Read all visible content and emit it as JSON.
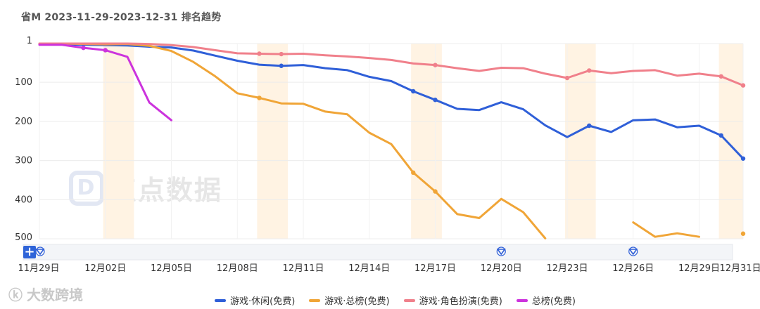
{
  "page": {
    "title": "省M 2023-11-29-2023-12-31 排名趋势",
    "watermark_text": "大数跨境",
    "logo_text": "点点数据",
    "zoom_button_label": "+"
  },
  "colors": {
    "casual": "#2f5fd8",
    "top": "#f0a537",
    "rpg": "#f0808b",
    "overall": "#cc33dd",
    "highlight": "#fff3e3"
  },
  "chart_data": {
    "type": "line",
    "title": "省M 2023-11-29-2023-12-31 排名趋势",
    "x_tick_labels": [
      "11月29日",
      "12月02日",
      "12月05日",
      "12月08日",
      "12月11日",
      "12月14日",
      "12月17日",
      "12月20日",
      "12月23日",
      "12月26日",
      "12月29日",
      "12月31日"
    ],
    "x_tick_positions_day_index": [
      0,
      3,
      6,
      9,
      12,
      15,
      18,
      21,
      24,
      27,
      30,
      32
    ],
    "y_tick_labels": [
      "1",
      "100",
      "200",
      "300",
      "400",
      "500"
    ],
    "y_tick_values": [
      1,
      100,
      200,
      300,
      400,
      500
    ],
    "y_range": [
      1,
      500
    ],
    "y_inverted": true,
    "shaded_day_index_ranges": [
      [
        2.9,
        4.3
      ],
      [
        9.9,
        11.3
      ],
      [
        16.9,
        18.3
      ],
      [
        23.9,
        25.3
      ],
      [
        30.9,
        32
      ]
    ],
    "series": [
      {
        "name": "游戏·休闲(免费)",
        "color_key": "casual",
        "points": [
          [
            0,
            3
          ],
          [
            1,
            3
          ],
          [
            2,
            4
          ],
          [
            3,
            5
          ],
          [
            4,
            6
          ],
          [
            5,
            9
          ],
          [
            6,
            11
          ],
          [
            7,
            19
          ],
          [
            8,
            32
          ],
          [
            9,
            45
          ],
          [
            10,
            55
          ],
          [
            11,
            58
          ],
          [
            12,
            56
          ],
          [
            13,
            64
          ],
          [
            14,
            69
          ],
          [
            15,
            86
          ],
          [
            16,
            97
          ],
          [
            17,
            123
          ],
          [
            18,
            145
          ],
          [
            19,
            168
          ],
          [
            20,
            171
          ],
          [
            21,
            151
          ],
          [
            22,
            169
          ],
          [
            23,
            210
          ],
          [
            24,
            240
          ],
          [
            25,
            211
          ],
          [
            26,
            227
          ],
          [
            27,
            197
          ],
          [
            28,
            195
          ],
          [
            29,
            215
          ],
          [
            30,
            211
          ],
          [
            31,
            236
          ],
          [
            32,
            295
          ]
        ],
        "markers": [
          11,
          17,
          18,
          25,
          31,
          32
        ]
      },
      {
        "name": "游戏·总榜(免费)",
        "color_key": "top",
        "points": [
          [
            0,
            1
          ],
          [
            1,
            1
          ],
          [
            2,
            2
          ],
          [
            3,
            3
          ],
          [
            4,
            2
          ],
          [
            5,
            7
          ],
          [
            6,
            20
          ],
          [
            7,
            48
          ],
          [
            8,
            85
          ],
          [
            9,
            128
          ],
          [
            10,
            140
          ],
          [
            11,
            154
          ],
          [
            12,
            155
          ],
          [
            13,
            175
          ],
          [
            14,
            182
          ],
          [
            15,
            229
          ],
          [
            16,
            258
          ],
          [
            17,
            331
          ],
          [
            18,
            379
          ],
          [
            19,
            437
          ],
          [
            20,
            447
          ],
          [
            21,
            398
          ],
          [
            22,
            432
          ],
          [
            23,
            499
          ]
        ],
        "segments": [
          [
            [
              27,
              458
            ],
            [
              28,
              495
            ],
            [
              29,
              486
            ],
            [
              30,
              495
            ]
          ]
        ],
        "isolated_points": [
          [
            32,
            487
          ]
        ],
        "markers": [
          10,
          17,
          18
        ]
      },
      {
        "name": "游戏·角色扮演(免费)",
        "color_key": "rpg",
        "points": [
          [
            0,
            1
          ],
          [
            1,
            1
          ],
          [
            2,
            1
          ],
          [
            3,
            1
          ],
          [
            4,
            1
          ],
          [
            5,
            2
          ],
          [
            6,
            5
          ],
          [
            7,
            10
          ],
          [
            8,
            18
          ],
          [
            9,
            26
          ],
          [
            10,
            27
          ],
          [
            11,
            28
          ],
          [
            12,
            27
          ],
          [
            13,
            31
          ],
          [
            14,
            34
          ],
          [
            15,
            38
          ],
          [
            16,
            43
          ],
          [
            17,
            52
          ],
          [
            18,
            56
          ],
          [
            19,
            64
          ],
          [
            20,
            71
          ],
          [
            21,
            63
          ],
          [
            22,
            64
          ],
          [
            23,
            78
          ],
          [
            24,
            89
          ],
          [
            25,
            70
          ],
          [
            26,
            77
          ],
          [
            27,
            71
          ],
          [
            28,
            69
          ],
          [
            29,
            83
          ],
          [
            30,
            78
          ],
          [
            31,
            85
          ],
          [
            32,
            108
          ]
        ],
        "markers": [
          10,
          11,
          18,
          24,
          25,
          31,
          32
        ]
      },
      {
        "name": "总榜(免费)",
        "color_key": "overall",
        "points": [
          [
            0,
            4
          ],
          [
            1,
            4
          ],
          [
            2,
            12
          ],
          [
            3,
            18
          ],
          [
            4,
            35
          ],
          [
            5,
            152
          ],
          [
            6,
            197
          ]
        ],
        "markers": [
          2,
          3
        ]
      }
    ],
    "slider_marker_positions_day_index": [
      0,
      21,
      27
    ],
    "legend_placement": "bottom-center",
    "grid": true
  }
}
